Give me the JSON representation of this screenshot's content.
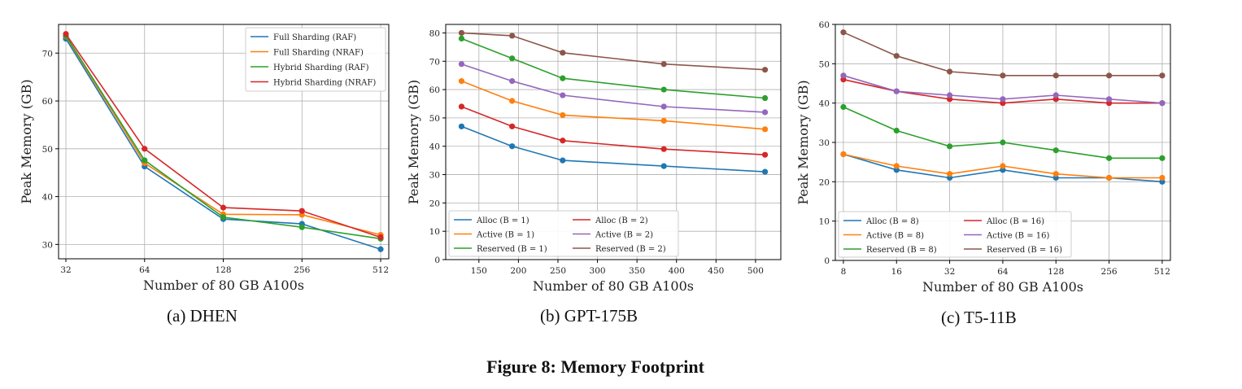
{
  "figure_caption": "Figure 8: Memory Footprint",
  "chart_data": [
    {
      "type": "line",
      "caption": "(a) DHEN",
      "title": "",
      "xlabel": "Number of 80 GB A100s",
      "ylabel": "Peak Memory (GB)",
      "xscale": "log2",
      "x": [
        32,
        64,
        128,
        256,
        512
      ],
      "xticks": [
        32,
        64,
        128,
        256,
        512
      ],
      "xlim": [
        30,
        550
      ],
      "yticks": [
        30,
        40,
        50,
        60,
        70
      ],
      "ylim": [
        27,
        76
      ],
      "grid": true,
      "legend_position": "top-right",
      "legend_columns": 1,
      "series": [
        {
          "name": "Full Sharding (RAF)",
          "color": "#1f77b4",
          "values": [
            73.0,
            46.3,
            35.3,
            34.3,
            29.0
          ]
        },
        {
          "name": "Full Sharding (NRAF)",
          "color": "#ff7f0e",
          "values": [
            73.5,
            47.0,
            36.3,
            36.2,
            32.0
          ]
        },
        {
          "name": "Hybrid Sharding (RAF)",
          "color": "#2ca02c",
          "values": [
            73.6,
            47.6,
            35.7,
            33.6,
            31.2
          ]
        },
        {
          "name": "Hybrid Sharding (NRAF)",
          "color": "#d62728",
          "values": [
            74.0,
            50.0,
            37.7,
            37.0,
            31.5
          ]
        }
      ]
    },
    {
      "type": "line",
      "caption": "(b) GPT-175B",
      "title": "",
      "xlabel": "Number of 80 GB A100s",
      "ylabel": "Peak Memory (GB)",
      "xscale": "linear",
      "x": [
        128,
        192,
        256,
        384,
        512
      ],
      "xticks": [
        150,
        200,
        250,
        300,
        350,
        400,
        450,
        500
      ],
      "xlim": [
        108,
        532
      ],
      "yticks": [
        0,
        10,
        20,
        30,
        40,
        50,
        60,
        70,
        80
      ],
      "ylim": [
        0,
        83
      ],
      "grid": true,
      "legend_position": "lower-left",
      "legend_columns": 2,
      "series": [
        {
          "name": "Alloc (B = 1)",
          "color": "#1f77b4",
          "values": [
            47,
            40,
            35,
            33,
            31
          ]
        },
        {
          "name": "Active (B = 1)",
          "color": "#ff7f0e",
          "values": [
            63,
            56,
            51,
            49,
            46
          ]
        },
        {
          "name": "Reserved (B = 1)",
          "color": "#2ca02c",
          "values": [
            78,
            71,
            64,
            60,
            57
          ]
        },
        {
          "name": "Alloc (B = 2)",
          "color": "#d62728",
          "values": [
            54,
            47,
            42,
            39,
            37
          ]
        },
        {
          "name": "Active (B = 2)",
          "color": "#9467bd",
          "values": [
            69,
            63,
            58,
            54,
            52
          ]
        },
        {
          "name": "Reserved (B = 2)",
          "color": "#8c564b",
          "values": [
            80,
            79,
            73,
            69,
            67
          ]
        }
      ]
    },
    {
      "type": "line",
      "caption": "(c) T5-11B",
      "title": "",
      "xlabel": "Number of 80 GB A100s",
      "ylabel": "Peak Memory (GB)",
      "xscale": "log2",
      "x": [
        8,
        16,
        32,
        64,
        128,
        256,
        512
      ],
      "xticks": [
        8,
        16,
        32,
        64,
        128,
        256,
        512
      ],
      "xlim": [
        7.2,
        570
      ],
      "yticks": [
        0,
        10,
        20,
        30,
        40,
        50,
        60
      ],
      "ylim": [
        0,
        60
      ],
      "grid": true,
      "legend_position": "lower-left",
      "legend_columns": 2,
      "series": [
        {
          "name": "Alloc (B = 8)",
          "color": "#1f77b4",
          "values": [
            27,
            23,
            21,
            23,
            21,
            21,
            20
          ]
        },
        {
          "name": "Active (B = 8)",
          "color": "#ff7f0e",
          "values": [
            27,
            24,
            22,
            24,
            22,
            21,
            21
          ]
        },
        {
          "name": "Reserved (B = 8)",
          "color": "#2ca02c",
          "values": [
            39,
            33,
            29,
            30,
            28,
            26,
            26
          ]
        },
        {
          "name": "Alloc (B = 16)",
          "color": "#d62728",
          "values": [
            46,
            43,
            41,
            40,
            41,
            40,
            40
          ]
        },
        {
          "name": "Active (B = 16)",
          "color": "#9467bd",
          "values": [
            47,
            43,
            42,
            41,
            42,
            41,
            40
          ]
        },
        {
          "name": "Reserved (B = 16)",
          "color": "#8c564b",
          "values": [
            58,
            52,
            48,
            47,
            47,
            47,
            47
          ]
        }
      ]
    }
  ]
}
